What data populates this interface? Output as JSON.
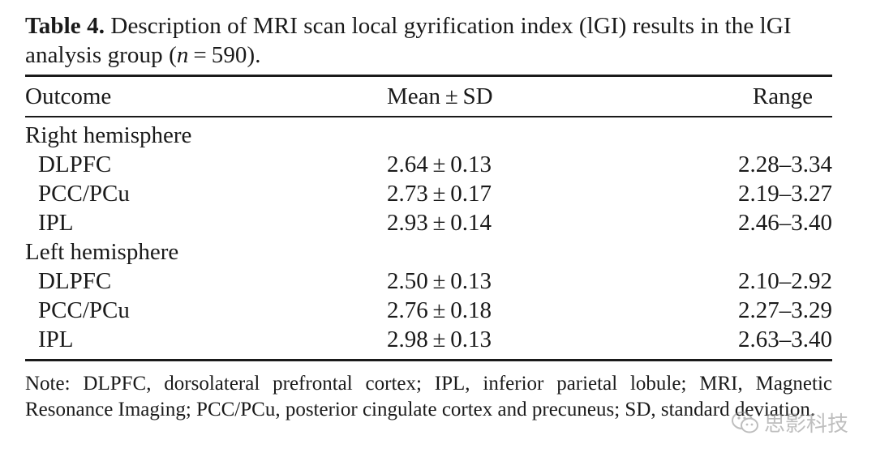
{
  "caption": {
    "label": "Table 4.",
    "text_before_n": "Description of MRI scan local gyrification index (lGI) results in the lGI analysis group (",
    "n_symbol": "n",
    "text_after_n": " = 590)."
  },
  "table": {
    "headers": [
      "Outcome",
      "Mean ± SD",
      "Range"
    ],
    "groups": [
      {
        "title": "Right hemisphere",
        "rows": [
          {
            "outcome": "DLPFC",
            "mean_sd": "2.64 ± 0.13",
            "range": "2.28–3.34"
          },
          {
            "outcome": "PCC/PCu",
            "mean_sd": "2.73 ± 0.17",
            "range": "2.19–3.27"
          },
          {
            "outcome": "IPL",
            "mean_sd": "2.93 ± 0.14",
            "range": "2.46–3.40"
          }
        ]
      },
      {
        "title": "Left hemisphere",
        "rows": [
          {
            "outcome": "DLPFC",
            "mean_sd": "2.50 ± 0.13",
            "range": "2.10–2.92"
          },
          {
            "outcome": "PCC/PCu",
            "mean_sd": "2.76 ± 0.18",
            "range": "2.27–3.29"
          },
          {
            "outcome": "IPL",
            "mean_sd": "2.98 ± 0.13",
            "range": "2.63–3.40"
          }
        ]
      }
    ]
  },
  "note": "Note: DLPFC, dorsolateral prefrontal cortex; IPL, inferior parietal lobule; MRI, Magnetic Resonance Imaging; PCC/PCu, posterior cingulate cortex and precuneus; SD, standard deviation.",
  "watermark": {
    "icon": "wechat-icon",
    "text": "思影科技"
  }
}
